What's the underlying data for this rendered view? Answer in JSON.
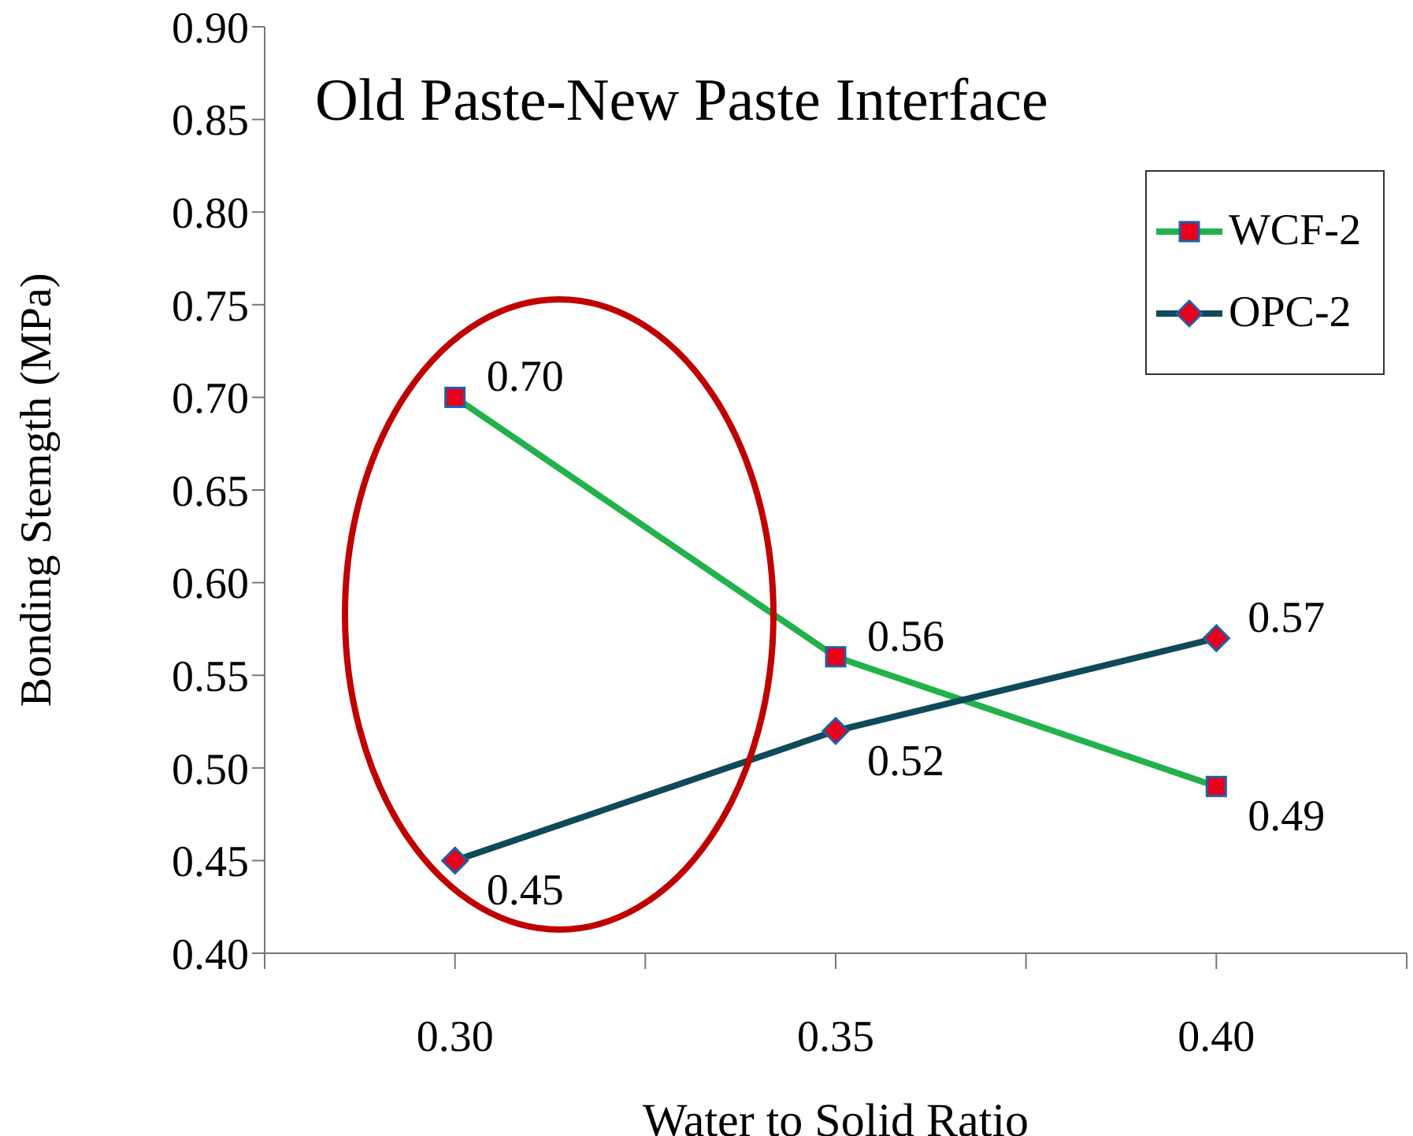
{
  "chart_data": {
    "type": "line",
    "title": "Old Paste-New Paste Interface",
    "xlabel": "Water to Solid Ratio",
    "ylabel": "Bonding Stemgth (MPa)",
    "x": [
      0.3,
      0.35,
      0.4
    ],
    "series": [
      {
        "name": "WCF-2",
        "color": "#21b24b",
        "marker": "square",
        "values": [
          0.7,
          0.56,
          0.49
        ],
        "value_labels": [
          "0.70",
          "0.56",
          "0.49"
        ]
      },
      {
        "name": "OPC-2",
        "color": "#0e4a5a",
        "marker": "diamond",
        "values": [
          0.45,
          0.52,
          0.57
        ],
        "value_labels": [
          "0.45",
          "0.52",
          "0.57"
        ]
      }
    ],
    "xlim": [
      0.275,
      0.425
    ],
    "xticks": [
      {
        "value": 0.275,
        "label": null
      },
      {
        "value": 0.3,
        "label": "0.30"
      },
      {
        "value": 0.325,
        "label": null
      },
      {
        "value": 0.35,
        "label": "0.35"
      },
      {
        "value": 0.375,
        "label": null
      },
      {
        "value": 0.4,
        "label": "0.40"
      },
      {
        "value": 0.425,
        "label": null
      }
    ],
    "ylim": [
      0.4,
      0.9
    ],
    "yticks": [
      {
        "value": 0.4,
        "label": "0.40"
      },
      {
        "value": 0.45,
        "label": "0.45"
      },
      {
        "value": 0.5,
        "label": "0.50"
      },
      {
        "value": 0.55,
        "label": "0.55"
      },
      {
        "value": 0.6,
        "label": "0.60"
      },
      {
        "value": 0.65,
        "label": "0.65"
      },
      {
        "value": 0.7,
        "label": "0.70"
      },
      {
        "value": 0.75,
        "label": "0.75"
      },
      {
        "value": 0.8,
        "label": "0.80"
      },
      {
        "value": 0.85,
        "label": "0.85"
      },
      {
        "value": 0.9,
        "label": "0.90"
      }
    ],
    "legend": "top right",
    "grid": false
  }
}
